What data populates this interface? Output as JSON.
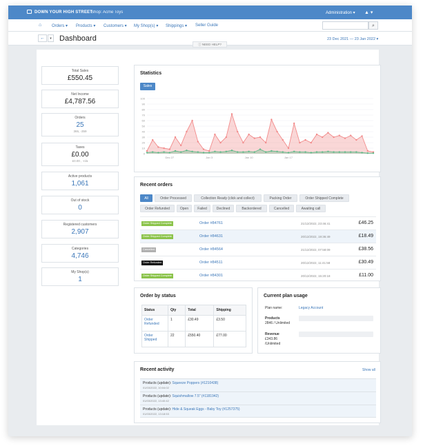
{
  "topbar": {
    "brand": "DOWN YOUR HIGH STREET",
    "shop": "Shop: Acme Toys",
    "admin": "Administration ▾",
    "user_icon": "▲ ▾"
  },
  "nav": {
    "home_icon": "⌂",
    "items": [
      "Orders ▾",
      "Products ▾",
      "Customers ▾",
      "My Shop(s) ▾",
      "Shippings ▾",
      "Seller Guide"
    ],
    "search_placeholder": "",
    "search_icon": "⌕"
  },
  "subbar": {
    "back_icon": "←",
    "caret_icon": "▾",
    "title": "Dashboard",
    "date_range": "23 Dec 2021 — 23 Jan 2022 ▾"
  },
  "help": "ⓘ NEED HELP?",
  "kpis": [
    {
      "label": "Total Sales",
      "value": "£550.45",
      "sub": "",
      "style": "dark"
    },
    {
      "label": "Net Income",
      "value": "£4,787.56",
      "sub": "",
      "style": "dark"
    },
    {
      "label": "Orders",
      "value": "25",
      "sub": "365, -359",
      "style": "blue"
    },
    {
      "label": "Taxes",
      "value": "£0.00",
      "sub": "£0.00 , -n/a",
      "style": "dark"
    },
    {
      "label": "Active products",
      "value": "1,061",
      "sub": "",
      "style": "blue"
    },
    {
      "label": "Out of stock",
      "value": "0",
      "sub": "",
      "style": "blue"
    },
    {
      "label": "Registered customers",
      "value": "2,907",
      "sub": "",
      "style": "blue"
    },
    {
      "label": "Categories",
      "value": "4,746",
      "sub": "",
      "style": "blue"
    },
    {
      "label": "My Shop(s)",
      "value": "1",
      "sub": "",
      "style": "blue"
    }
  ],
  "statistics": {
    "title": "Statistics",
    "tab": "Sales"
  },
  "chart_data": {
    "type": "area",
    "y_ticks": [
      "100",
      "90",
      "80",
      "70",
      "60",
      "50",
      "40",
      "30",
      "20",
      "10",
      "0"
    ],
    "ylim": [
      0,
      100
    ],
    "x_ticks": [
      {
        "label": "Dec 27",
        "index": 4
      },
      {
        "label": "Jan 3",
        "index": 11
      },
      {
        "label": "Jan 10",
        "index": 18
      },
      {
        "label": "Jan 17",
        "index": 25
      }
    ],
    "grid": true,
    "legend": "none",
    "series": [
      {
        "color": "#f28b8b",
        "values": [
          5,
          25,
          12,
          10,
          8,
          30,
          15,
          40,
          60,
          22,
          8,
          5,
          35,
          20,
          30,
          72,
          40,
          20,
          35,
          28,
          30,
          20,
          62,
          40,
          25,
          10,
          55,
          20,
          25,
          20,
          35,
          30,
          38,
          30,
          33,
          28,
          33,
          25,
          32,
          5,
          3
        ]
      },
      {
        "color": "#5fba8a",
        "values": [
          2,
          3,
          2,
          3,
          2,
          5,
          3,
          6,
          4,
          3,
          2,
          2,
          4,
          3,
          4,
          6,
          3,
          3,
          4,
          3,
          8,
          3,
          5,
          4,
          3,
          2,
          4,
          3,
          3,
          2,
          3,
          3,
          4,
          3,
          3,
          3,
          3,
          3,
          2,
          1,
          1
        ]
      }
    ]
  },
  "recent_orders": {
    "title": "Recent orders",
    "filters": [
      "All",
      "Order Processed",
      "Collection Ready (click and collect)",
      "Packing Order",
      "Order Shipped Complete",
      "Order Refunded",
      "Open",
      "Failed",
      "Declined",
      "Backordered",
      "Cancelled",
      "Awaiting call"
    ],
    "rows": [
      {
        "badge": "Order Shipped Complete",
        "badge_color": "#8bc34a",
        "order": "Order #84761",
        "date": "21/12/2022, 23:46:41",
        "amount": "£46.25",
        "highlight": false
      },
      {
        "badge": "Order Shipped Complete",
        "badge_color": "#8bc34a",
        "order": "Order #84631",
        "date": "20/12/2022, 19:36:49",
        "amount": "£18.49",
        "highlight": true
      },
      {
        "badge": "Cancelled",
        "badge_color": "#b0b0b0",
        "order": "Order #84564",
        "date": "21/12/2022, 07:58:09",
        "amount": "£38.56",
        "highlight": false
      },
      {
        "badge": "Order Refunded",
        "badge_color": "#111111",
        "order": "Order #84511",
        "date": "20/12/2022, 11:41:58",
        "amount": "£30.49",
        "highlight": false
      },
      {
        "badge": "Order Shipped Complete",
        "badge_color": "#8bc34a",
        "order": "Order #84301",
        "date": "20/12/2022, 15:20:18",
        "amount": "£11.00",
        "highlight": false
      }
    ]
  },
  "order_status": {
    "title": "Order by status",
    "headers": [
      "Status",
      "Qty",
      "Total",
      "Shipping"
    ],
    "rows": [
      {
        "status": "Order Refunded",
        "qty": "1",
        "total": "£30.49",
        "shipping": "£3.50"
      },
      {
        "status": "Order Shipped",
        "qty": "22",
        "total": "£550.40",
        "shipping": "£77.00"
      }
    ]
  },
  "plan": {
    "title": "Current plan usage",
    "plan_label": "Plan name:",
    "plan_value": "Legacy Account",
    "products_label": "Products",
    "products_value": "2846 / Unlimited",
    "revenue_label": "Revenue",
    "revenue_value": "£343.86",
    "revenue_limit": "/Unlimited"
  },
  "activity": {
    "title": "Recent activity",
    "show_all": "Show all",
    "items": [
      {
        "prefix": "Products (update):",
        "link": "Squeeze Poppers (#1210438)",
        "time": "01/03/2022, 10:04:02"
      },
      {
        "prefix": "Products (update):",
        "link": "Squishmallow 7.5\" (#1181942)",
        "time": "01/03/2022, 13:40:42"
      },
      {
        "prefix": "Products (update):",
        "link": "Hide & Squeak Eggs - Baby Toy (#1257375)",
        "time": "01/03/2022, 13:18:53"
      }
    ]
  }
}
